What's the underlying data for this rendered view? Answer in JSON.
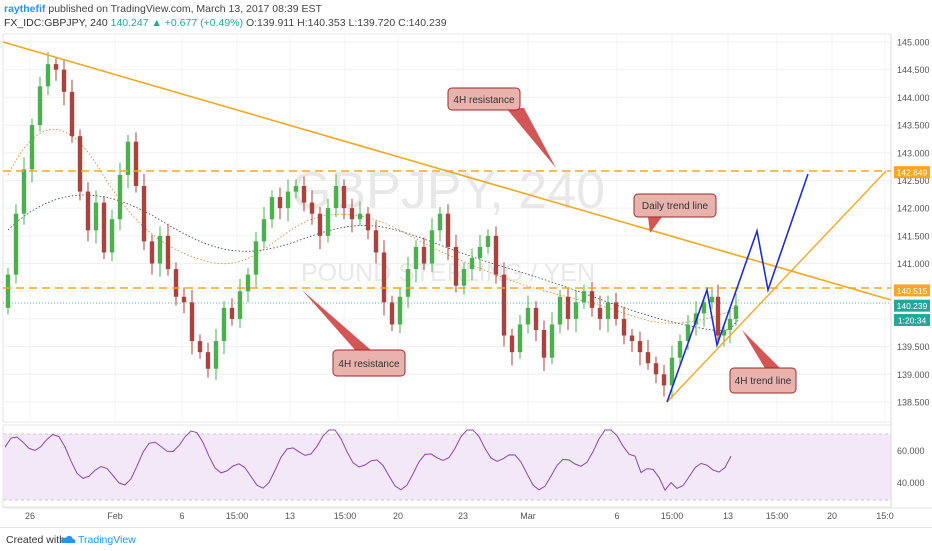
{
  "header": {
    "author": "raythefif",
    "published": "published on TradingView.com, March 13, 2017 08:39 EST",
    "symbol": "FX_IDC:GBPJPY, 240",
    "change": "140.247 ▲ +0.677 (+0.49%)",
    "ohlc": "O:139.911 H:140.353 L:139.720 C:140.239"
  },
  "footer": {
    "created_with": "Created with",
    "brand": "TradingView"
  },
  "chart_data": {
    "type": "candlestick",
    "watermark": {
      "symbol": "GBPJPY, 240",
      "name": "POUND STERLING / YEN"
    },
    "price_axis": {
      "min": 138.2,
      "max": 145.2,
      "ticks": [
        "145.000",
        "144.500",
        "144.000",
        "143.500",
        "143.000",
        "142.500",
        "142.000",
        "141.500",
        "141.000",
        "140.500",
        "140.000",
        "139.500",
        "139.000",
        "138.500"
      ]
    },
    "time_axis": {
      "labels": [
        "26",
        "Feb",
        "6",
        "15:00",
        "13",
        "15:00",
        "20",
        "23",
        "Mar",
        "6",
        "15:00",
        "13",
        "15:00",
        "20",
        "15:0"
      ]
    },
    "price_badges": [
      {
        "text": "142.649",
        "price": 142.649,
        "color": "#f5a623"
      },
      {
        "text": "140.515",
        "price": 140.515,
        "color": "#f5a623"
      },
      {
        "text": "140.239",
        "price": 140.239,
        "color": "#26a69a"
      },
      {
        "text": "1:20:34",
        "price": 139.98,
        "color": "#26a69a"
      }
    ],
    "levels": [
      {
        "name": "4H resistance upper",
        "price": 142.649
      },
      {
        "name": "4H resistance lower",
        "price": 140.515
      }
    ],
    "annotations": [
      {
        "text": "4H resistance",
        "near_price": 144.1
      },
      {
        "text": "Daily trend line",
        "near_price": 142.0
      },
      {
        "text": "4H resistance",
        "near_price": 139.2
      },
      {
        "text": "4H trend line",
        "near_price": 138.95
      }
    ],
    "rsi": {
      "ticks": [
        "60.000",
        "40.000"
      ],
      "upper": 70,
      "lower": 30
    }
  }
}
